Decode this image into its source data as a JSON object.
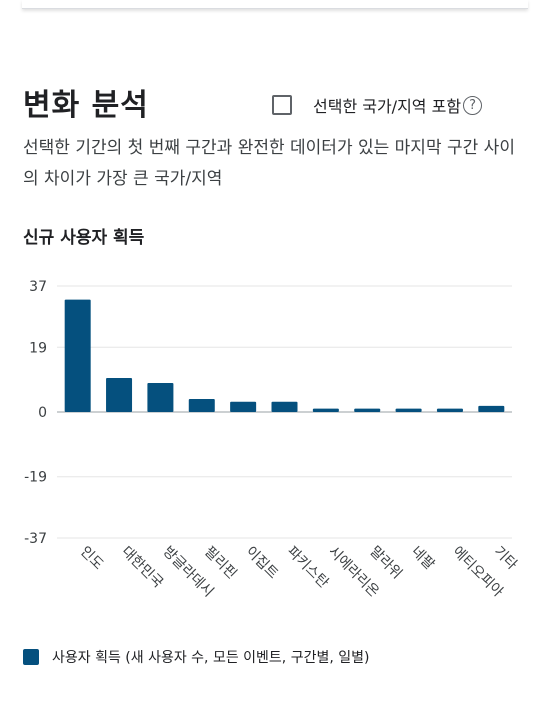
{
  "header": {
    "title": "변화 분석",
    "include_selected_label": "선택한 국가/지역 포함",
    "help_icon": "?"
  },
  "description": "선택한 기간의 첫 번째 구간과 완전한 데이터가 있는 마지막 구간 사이의 차이가 가장 큰 국가/지역",
  "chart_data": {
    "type": "bar",
    "title": "신규 사용자 획득",
    "categories": [
      "인도",
      "대한민국",
      "방글라데시",
      "필리핀",
      "이집트",
      "파키스탄",
      "시에라리온",
      "말라위",
      "네팔",
      "에티오피아",
      "기타"
    ],
    "series": [
      {
        "name": "사용자 획득 (새 사용자 수, 모든 이벤트, 구간별, 일별)",
        "values": [
          33,
          10,
          8.5,
          3.8,
          3,
          3,
          1,
          1,
          1,
          1,
          1.8
        ]
      }
    ],
    "yticks": [
      37,
      19,
      0,
      -19,
      -37
    ],
    "ylim": [
      -37,
      37
    ],
    "grid": true,
    "legend_position": "bottom-left",
    "bar_color": "#05507e"
  }
}
